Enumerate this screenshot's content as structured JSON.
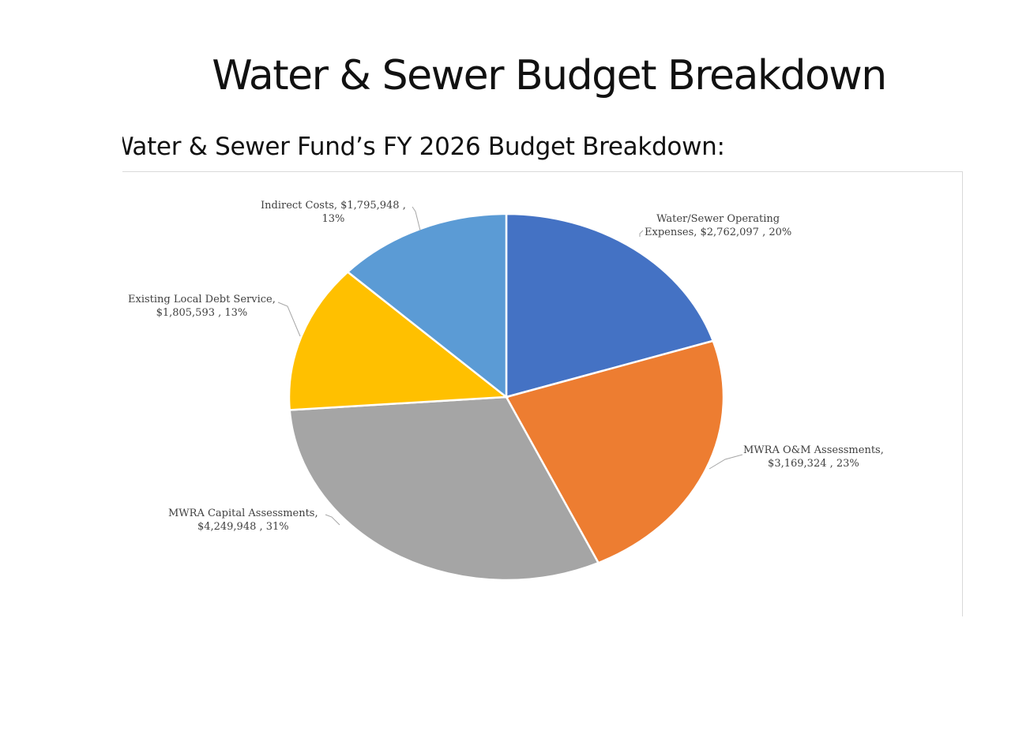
{
  "slide": {
    "title": "Water & Sewer Budget Breakdown",
    "subtitle": "Water & Sewer Fund’s FY 2026 Budget Breakdown:"
  },
  "chart_data": {
    "type": "pie",
    "title": "",
    "slices": [
      {
        "label": "Water/Sewer Operating Expenses",
        "value": 2762097,
        "value_text": "$2,762,097",
        "percent_text": "20%",
        "color": "#4472C4"
      },
      {
        "label": "MWRA O&M Assessments",
        "value": 3169324,
        "value_text": "$3,169,324",
        "percent_text": "23%",
        "color": "#ED7D31"
      },
      {
        "label": "MWRA Capital Assessments",
        "value": 4249948,
        "value_text": "$4,249,948",
        "percent_text": "31%",
        "color": "#A5A5A5"
      },
      {
        "label": "Existing Local Debt Service",
        "value": 1805593,
        "value_text": "$1,805,593",
        "percent_text": "13%",
        "color": "#FFC000"
      },
      {
        "label": "Indirect Costs",
        "value": 1795948,
        "value_text": "$1,795,948",
        "percent_text": "13%",
        "color": "#5B9BD5"
      }
    ],
    "legend": "none",
    "data_labels": "outside with leader lines"
  }
}
